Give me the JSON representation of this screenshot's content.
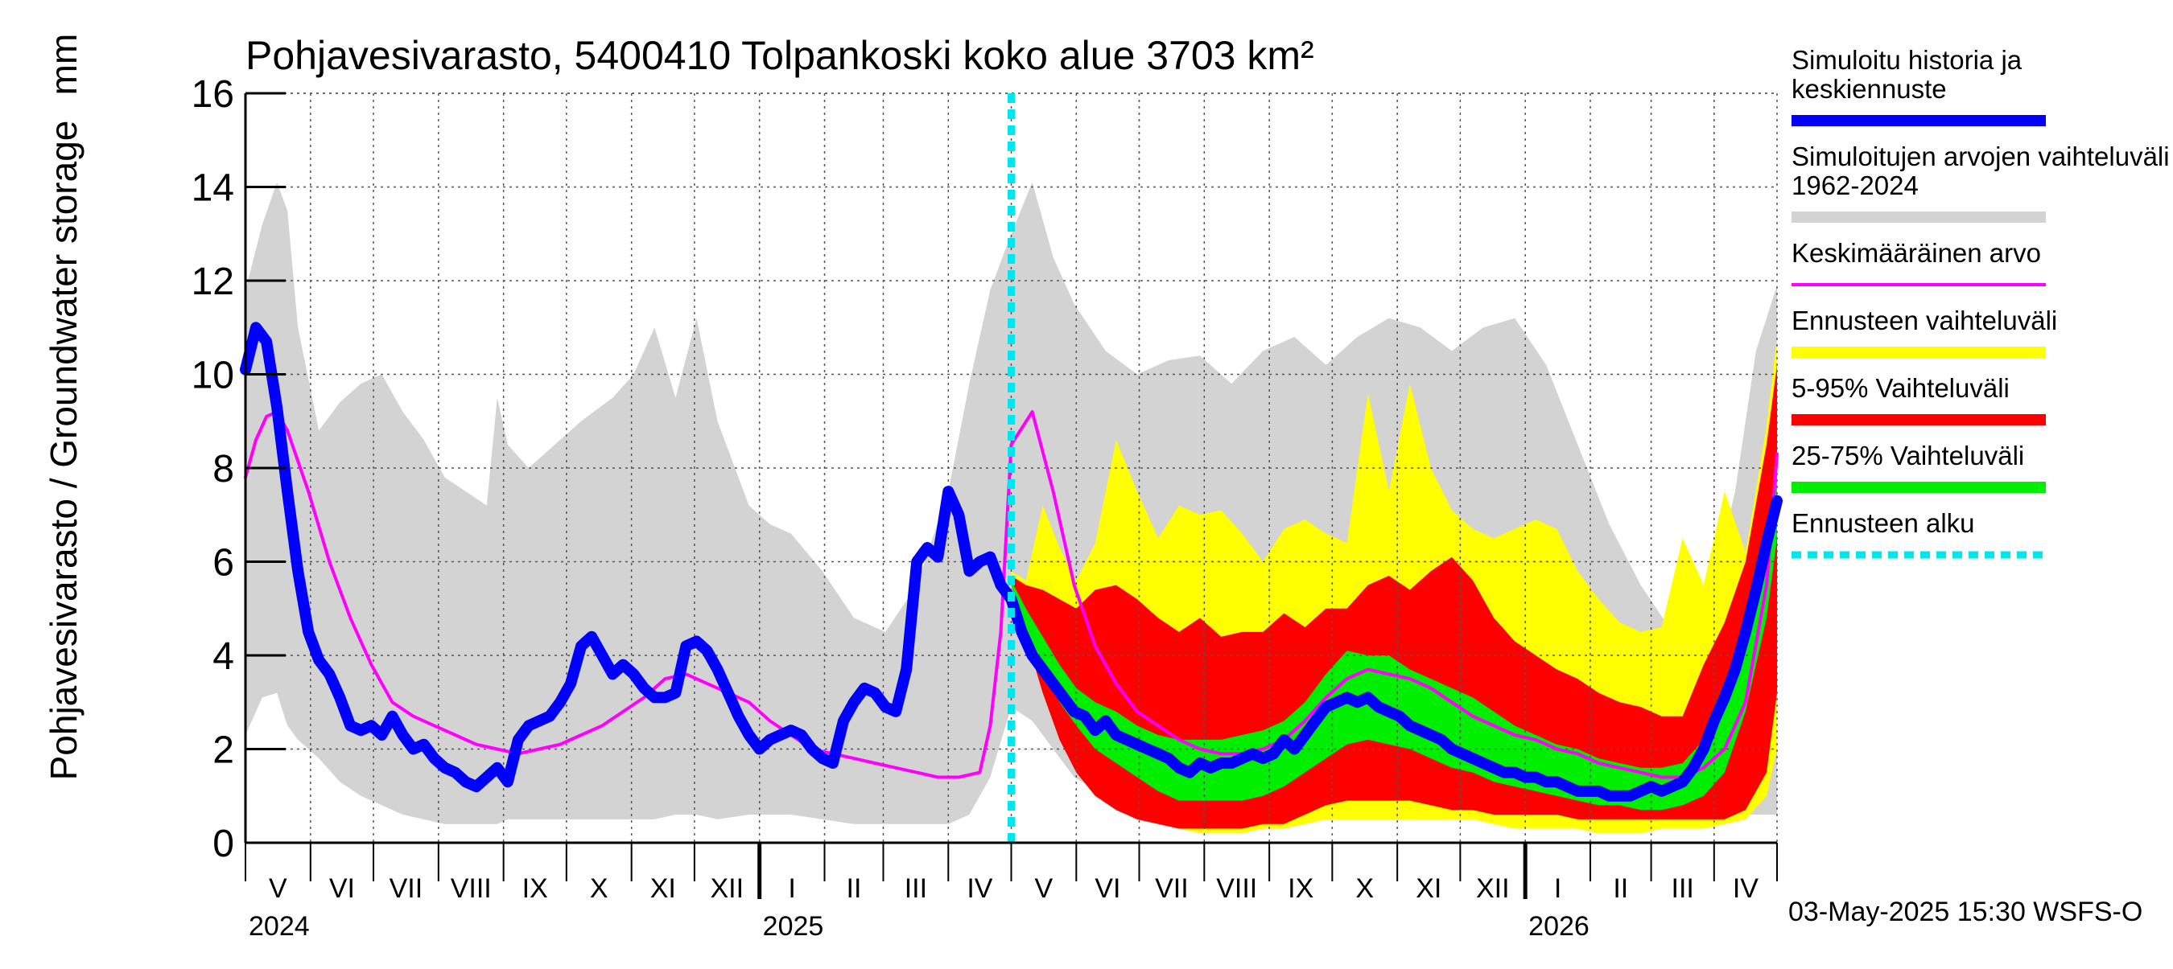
{
  "chart_data": {
    "type": "area",
    "title": "Pohjavesivarasto, 5400410 Tolpankoski koko alue 3703 km²",
    "ylabel": "Pohjavesivarasto / Groundwater storage",
    "yunit": "mm",
    "ylim": [
      0,
      16
    ],
    "yticks": [
      0,
      2,
      4,
      6,
      8,
      10,
      12,
      14,
      16
    ],
    "x_domain_days": [
      0,
      730
    ],
    "forecast_start_day": 365,
    "months": [
      {
        "label": "V",
        "start": 0
      },
      {
        "label": "VI",
        "start": 31
      },
      {
        "label": "VII",
        "start": 61
      },
      {
        "label": "VIII",
        "start": 92
      },
      {
        "label": "IX",
        "start": 123
      },
      {
        "label": "X",
        "start": 153
      },
      {
        "label": "XI",
        "start": 184
      },
      {
        "label": "XII",
        "start": 214
      },
      {
        "label": "I",
        "start": 245
      },
      {
        "label": "II",
        "start": 276
      },
      {
        "label": "III",
        "start": 304
      },
      {
        "label": "IV",
        "start": 335
      },
      {
        "label": "V",
        "start": 365
      },
      {
        "label": "VI",
        "start": 396
      },
      {
        "label": "VII",
        "start": 426
      },
      {
        "label": "VIII",
        "start": 457
      },
      {
        "label": "IX",
        "start": 488
      },
      {
        "label": "X",
        "start": 518
      },
      {
        "label": "XI",
        "start": 549
      },
      {
        "label": "XII",
        "start": 579
      },
      {
        "label": "I",
        "start": 610
      },
      {
        "label": "II",
        "start": 641
      },
      {
        "label": "III",
        "start": 670
      },
      {
        "label": "IV",
        "start": 700
      }
    ],
    "month_end": 730,
    "year_ticks": [
      245,
      610
    ],
    "years": [
      {
        "label": "2024",
        "day": 0
      },
      {
        "label": "2025",
        "day": 245
      },
      {
        "label": "2026",
        "day": 610
      }
    ],
    "series": [
      {
        "name": "Simuloitujen arvojen vaihteluväli 1962-2024",
        "kind": "band",
        "color": "#d3d3d3",
        "x": [
          0,
          8,
          15,
          20,
          25,
          35,
          45,
          55,
          65,
          75,
          85,
          95,
          105,
          115,
          120,
          125,
          135,
          150,
          160,
          175,
          185,
          195,
          205,
          215,
          225,
          240,
          250,
          260,
          275,
          290,
          305,
          320,
          335,
          345,
          355,
          365,
          375,
          385,
          395,
          410,
          425,
          440,
          455,
          470,
          485,
          500,
          515,
          530,
          545,
          560,
          575,
          590,
          605,
          620,
          635,
          650,
          665,
          680,
          695,
          710,
          720,
          730
        ],
        "upper": [
          11.8,
          13.2,
          14.1,
          13.5,
          11.0,
          8.8,
          9.4,
          9.8,
          10.0,
          9.2,
          8.6,
          7.8,
          7.5,
          7.2,
          9.5,
          8.5,
          8.0,
          8.6,
          9.0,
          9.5,
          10.0,
          11.0,
          9.5,
          11.2,
          9.0,
          7.2,
          6.8,
          6.6,
          5.8,
          4.8,
          4.5,
          5.5,
          7.5,
          9.8,
          11.8,
          13.0,
          14.1,
          12.5,
          11.5,
          10.5,
          10.0,
          10.3,
          10.4,
          9.8,
          10.5,
          10.8,
          10.2,
          10.8,
          11.2,
          11.0,
          10.5,
          11.0,
          11.2,
          10.2,
          8.5,
          6.8,
          5.5,
          4.5,
          4.6,
          7.5,
          10.5,
          11.9
        ],
        "lower": [
          2.3,
          3.1,
          3.2,
          2.5,
          2.2,
          1.8,
          1.3,
          1.0,
          0.8,
          0.6,
          0.5,
          0.4,
          0.4,
          0.4,
          0.4,
          0.5,
          0.5,
          0.5,
          0.5,
          0.5,
          0.5,
          0.5,
          0.6,
          0.6,
          0.5,
          0.6,
          0.6,
          0.6,
          0.5,
          0.4,
          0.4,
          0.4,
          0.4,
          0.6,
          1.4,
          2.9,
          2.6,
          2.0,
          1.4,
          1.0,
          0.7,
          0.5,
          0.5,
          0.5,
          0.5,
          0.5,
          0.5,
          0.6,
          0.6,
          0.6,
          0.6,
          0.5,
          0.5,
          0.5,
          0.5,
          0.5,
          0.5,
          0.6,
          0.6,
          0.6,
          0.6,
          0.6
        ]
      },
      {
        "name": "Ennusteen vaihteluväli",
        "kind": "band",
        "color": "#ffff00",
        "x": [
          365,
          372,
          380,
          388,
          396,
          405,
          415,
          425,
          435,
          445,
          455,
          465,
          475,
          485,
          495,
          505,
          515,
          525,
          535,
          545,
          555,
          565,
          575,
          585,
          595,
          605,
          615,
          625,
          635,
          645,
          655,
          665,
          675,
          685,
          695,
          705,
          715,
          725,
          730
        ],
        "upper": [
          5.8,
          5.6,
          7.2,
          6.3,
          5.6,
          6.4,
          8.6,
          7.5,
          6.5,
          7.2,
          7.0,
          7.1,
          6.6,
          6.0,
          6.7,
          6.9,
          6.6,
          6.4,
          9.6,
          7.5,
          9.8,
          8.0,
          7.1,
          6.7,
          6.5,
          6.7,
          6.9,
          6.7,
          5.8,
          5.2,
          4.7,
          4.5,
          4.6,
          6.5,
          5.5,
          7.5,
          6.2,
          8.9,
          10.8
        ],
        "lower": [
          5.6,
          4.6,
          3.5,
          2.4,
          1.6,
          1.1,
          0.9,
          0.7,
          0.5,
          0.3,
          0.2,
          0.2,
          0.2,
          0.3,
          0.3,
          0.4,
          0.5,
          0.5,
          0.5,
          0.5,
          0.5,
          0.5,
          0.5,
          0.5,
          0.4,
          0.3,
          0.3,
          0.3,
          0.3,
          0.2,
          0.2,
          0.2,
          0.3,
          0.3,
          0.3,
          0.4,
          0.5,
          1.0,
          2.0
        ]
      },
      {
        "name": "5-95% Vaihteluväli",
        "kind": "band",
        "color": "#ff0000",
        "x": [
          365,
          372,
          380,
          388,
          396,
          405,
          415,
          425,
          435,
          445,
          455,
          465,
          475,
          485,
          495,
          505,
          515,
          525,
          535,
          545,
          555,
          565,
          575,
          585,
          595,
          605,
          615,
          625,
          635,
          645,
          655,
          665,
          675,
          685,
          695,
          705,
          715,
          725,
          730
        ],
        "upper": [
          5.7,
          5.5,
          5.4,
          5.2,
          5.0,
          5.4,
          5.5,
          5.2,
          4.8,
          4.5,
          4.8,
          4.4,
          4.5,
          4.5,
          4.9,
          4.6,
          5.0,
          5.0,
          5.5,
          5.7,
          5.4,
          5.8,
          6.1,
          5.6,
          4.8,
          4.3,
          4.0,
          3.7,
          3.5,
          3.2,
          3.0,
          2.9,
          2.7,
          2.7,
          3.8,
          4.7,
          6.0,
          8.5,
          10.2
        ],
        "lower": [
          5.5,
          4.4,
          3.2,
          2.2,
          1.5,
          1.0,
          0.7,
          0.5,
          0.4,
          0.3,
          0.3,
          0.3,
          0.3,
          0.4,
          0.4,
          0.6,
          0.8,
          0.9,
          0.9,
          0.9,
          0.9,
          0.8,
          0.7,
          0.7,
          0.6,
          0.6,
          0.6,
          0.6,
          0.5,
          0.5,
          0.5,
          0.5,
          0.5,
          0.5,
          0.5,
          0.5,
          0.7,
          1.5,
          3.2
        ]
      },
      {
        "name": "25-75% Vaihteluväli",
        "kind": "band",
        "color": "#00ee00",
        "x": [
          365,
          372,
          380,
          388,
          396,
          405,
          415,
          425,
          435,
          445,
          455,
          465,
          475,
          485,
          495,
          505,
          515,
          525,
          535,
          545,
          555,
          565,
          575,
          585,
          595,
          605,
          615,
          625,
          635,
          645,
          655,
          665,
          675,
          685,
          695,
          705,
          715,
          725,
          730
        ],
        "upper": [
          5.6,
          5.0,
          4.4,
          3.8,
          3.3,
          3.0,
          2.8,
          2.5,
          2.3,
          2.2,
          2.2,
          2.2,
          2.3,
          2.4,
          2.6,
          3.0,
          3.6,
          4.1,
          4.0,
          4.0,
          3.7,
          3.5,
          3.3,
          3.1,
          2.8,
          2.5,
          2.3,
          2.1,
          2.0,
          1.8,
          1.7,
          1.6,
          1.6,
          1.7,
          2.2,
          3.0,
          4.5,
          6.5,
          8.0
        ],
        "lower": [
          5.5,
          4.6,
          3.8,
          3.0,
          2.5,
          2.0,
          1.7,
          1.4,
          1.1,
          0.9,
          0.9,
          0.9,
          0.9,
          1.0,
          1.2,
          1.5,
          1.8,
          2.1,
          2.2,
          2.1,
          2.0,
          1.8,
          1.6,
          1.5,
          1.3,
          1.2,
          1.1,
          1.0,
          0.9,
          0.8,
          0.8,
          0.7,
          0.7,
          0.8,
          1.0,
          1.5,
          2.8,
          4.8,
          6.5
        ]
      },
      {
        "name": "Keskimääräinen arvo",
        "kind": "line",
        "color": "#ff00ff",
        "x": [
          0,
          5,
          10,
          15,
          20,
          30,
          40,
          50,
          60,
          70,
          80,
          90,
          100,
          110,
          120,
          130,
          140,
          150,
          160,
          170,
          180,
          190,
          200,
          210,
          220,
          230,
          240,
          250,
          260,
          270,
          280,
          290,
          300,
          310,
          320,
          330,
          340,
          350,
          355,
          360,
          365,
          375,
          385,
          395,
          405,
          415,
          425,
          435,
          445,
          455,
          465,
          475,
          485,
          495,
          505,
          515,
          525,
          535,
          545,
          555,
          565,
          575,
          585,
          595,
          605,
          615,
          625,
          635,
          645,
          655,
          665,
          675,
          685,
          695,
          705,
          715,
          725,
          730
        ],
        "values": [
          7.8,
          8.6,
          9.1,
          9.2,
          8.8,
          7.5,
          6.0,
          4.8,
          3.8,
          3.0,
          2.7,
          2.5,
          2.3,
          2.1,
          2.0,
          1.9,
          2.0,
          2.1,
          2.3,
          2.5,
          2.8,
          3.1,
          3.5,
          3.6,
          3.4,
          3.2,
          3.0,
          2.6,
          2.3,
          2.0,
          1.9,
          1.8,
          1.7,
          1.6,
          1.5,
          1.4,
          1.4,
          1.5,
          2.5,
          4.5,
          8.5,
          9.2,
          7.5,
          5.5,
          4.2,
          3.4,
          2.8,
          2.5,
          2.2,
          2.0,
          1.9,
          1.9,
          2.0,
          2.2,
          2.6,
          3.1,
          3.5,
          3.7,
          3.6,
          3.5,
          3.3,
          3.0,
          2.7,
          2.5,
          2.3,
          2.2,
          2.0,
          1.9,
          1.7,
          1.6,
          1.5,
          1.4,
          1.4,
          1.6,
          2.0,
          3.0,
          5.5,
          8.3
        ]
      },
      {
        "name": "Simuloitu historia ja keskiennuste",
        "kind": "line",
        "color": "#0000ff",
        "x": [
          0,
          5,
          10,
          15,
          20,
          25,
          30,
          35,
          40,
          45,
          50,
          55,
          60,
          65,
          70,
          75,
          80,
          85,
          90,
          95,
          100,
          105,
          110,
          115,
          120,
          125,
          130,
          135,
          140,
          145,
          150,
          155,
          160,
          165,
          170,
          175,
          180,
          185,
          190,
          195,
          200,
          205,
          210,
          215,
          220,
          225,
          230,
          235,
          240,
          245,
          250,
          255,
          260,
          265,
          270,
          275,
          280,
          285,
          290,
          295,
          300,
          305,
          310,
          315,
          320,
          325,
          330,
          335,
          340,
          345,
          350,
          355,
          360,
          365,
          370,
          375,
          380,
          385,
          390,
          395,
          400,
          405,
          410,
          415,
          420,
          425,
          430,
          435,
          440,
          445,
          450,
          455,
          460,
          465,
          470,
          475,
          480,
          485,
          490,
          495,
          500,
          505,
          510,
          515,
          520,
          525,
          530,
          535,
          540,
          545,
          550,
          555,
          560,
          565,
          570,
          575,
          580,
          585,
          590,
          595,
          600,
          605,
          610,
          615,
          620,
          625,
          630,
          635,
          640,
          645,
          650,
          655,
          660,
          665,
          670,
          675,
          680,
          685,
          690,
          695,
          700,
          705,
          710,
          715,
          720,
          725,
          730
        ],
        "values": [
          10.1,
          11.0,
          10.7,
          9.3,
          7.5,
          5.8,
          4.5,
          3.9,
          3.6,
          3.1,
          2.5,
          2.4,
          2.5,
          2.3,
          2.7,
          2.3,
          2.0,
          2.1,
          1.8,
          1.6,
          1.5,
          1.3,
          1.2,
          1.4,
          1.6,
          1.3,
          2.2,
          2.5,
          2.6,
          2.7,
          3.0,
          3.4,
          4.2,
          4.4,
          4.0,
          3.6,
          3.8,
          3.6,
          3.3,
          3.1,
          3.1,
          3.2,
          4.2,
          4.3,
          4.1,
          3.7,
          3.2,
          2.7,
          2.3,
          2.0,
          2.2,
          2.3,
          2.4,
          2.3,
          2.0,
          1.8,
          1.7,
          2.6,
          3.0,
          3.3,
          3.2,
          2.9,
          2.8,
          3.7,
          6.0,
          6.3,
          6.1,
          7.5,
          7.0,
          5.8,
          6.0,
          6.1,
          5.5,
          5.2,
          4.5,
          4.0,
          3.7,
          3.4,
          3.1,
          2.8,
          2.7,
          2.4,
          2.6,
          2.3,
          2.2,
          2.1,
          2.0,
          1.9,
          1.8,
          1.6,
          1.5,
          1.7,
          1.6,
          1.7,
          1.7,
          1.8,
          1.9,
          1.8,
          1.9,
          2.2,
          2.0,
          2.3,
          2.6,
          2.9,
          3.0,
          3.1,
          3.0,
          3.1,
          2.9,
          2.8,
          2.7,
          2.5,
          2.4,
          2.3,
          2.2,
          2.0,
          1.9,
          1.8,
          1.7,
          1.6,
          1.5,
          1.5,
          1.4,
          1.4,
          1.3,
          1.3,
          1.2,
          1.1,
          1.1,
          1.1,
          1.0,
          1.0,
          1.0,
          1.1,
          1.2,
          1.1,
          1.2,
          1.3,
          1.6,
          2.0,
          2.6,
          3.1,
          3.7,
          4.5,
          5.4,
          6.4,
          7.3
        ]
      },
      {
        "name": "Ennusteen alku",
        "kind": "vline",
        "color": "#00e5ee",
        "x": 365
      }
    ],
    "legend": [
      {
        "label": "Simuloitu historia ja keskiennuste",
        "color": "#0000ff",
        "style": "thick"
      },
      {
        "label": "Simuloitujen arvojen vaihteluväli 1962-2024",
        "color": "#d3d3d3",
        "style": "thick"
      },
      {
        "label": "Keskimääräinen arvo",
        "color": "#ff00ff",
        "style": "thin"
      },
      {
        "label": "Ennusteen vaihteluväli",
        "color": "#ffff00",
        "style": "thick"
      },
      {
        "label": "5-95% Vaihteluväli",
        "color": "#ff0000",
        "style": "thick"
      },
      {
        "label": "25-75% Vaihteluväli",
        "color": "#00ee00",
        "style": "thick"
      },
      {
        "label": "Ennusteen alku",
        "color": "#00e5ee",
        "style": "dashed"
      }
    ],
    "legend_position": "right",
    "footer": "03-May-2025 15:30 WSFS-O"
  }
}
